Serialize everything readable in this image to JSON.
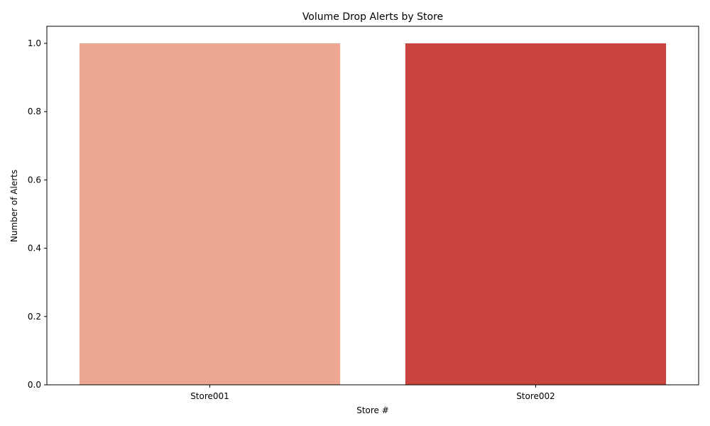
{
  "chart_data": {
    "type": "bar",
    "title": "Volume Drop Alerts by Store",
    "xlabel": "Store #",
    "ylabel": "Number of Alerts",
    "categories": [
      "Store001",
      "Store002"
    ],
    "values": [
      1,
      1
    ],
    "colors": [
      "#eca691",
      "#c9443f"
    ],
    "ylim": [
      0,
      1.05
    ],
    "yticks": [
      0.0,
      0.2,
      0.4,
      0.6,
      0.8,
      1.0
    ],
    "ytick_labels": [
      "0.0",
      "0.2",
      "0.4",
      "0.6",
      "0.8",
      "1.0"
    ],
    "grid": false,
    "legend": "none"
  }
}
